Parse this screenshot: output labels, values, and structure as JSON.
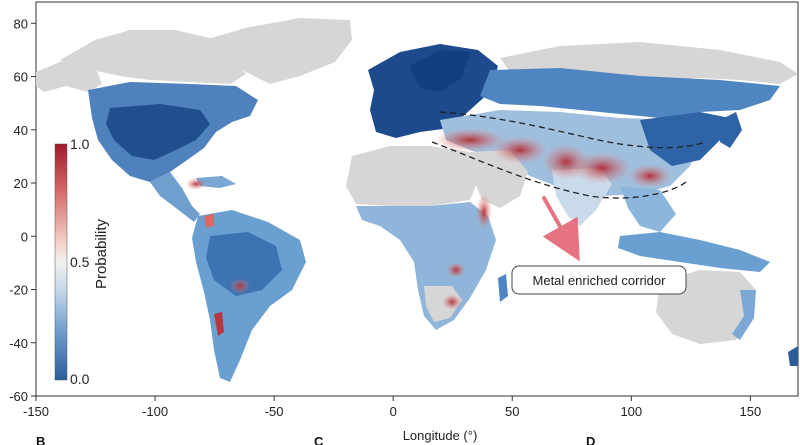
{
  "map": {
    "x_axis": {
      "label": "Longitude (°)",
      "range": [
        -150,
        170
      ],
      "ticks": [
        "-150",
        "-100",
        "-50",
        "0",
        "50",
        "100",
        "150"
      ]
    },
    "y_axis": {
      "range": [
        -60,
        88
      ],
      "ticks": [
        "80",
        "60",
        "40",
        "20",
        "0",
        "-20",
        "-40",
        "-60"
      ]
    },
    "colorbar": {
      "title": "Probability",
      "max_label": "1.0",
      "mid_label": "0.5",
      "min_label": "0.0",
      "colors": {
        "high": "#9e1a2b",
        "mid": "#f3f1ee",
        "low": "#2c5d97"
      }
    },
    "annotation": {
      "text": "Metal enriched corridor"
    },
    "panel_labels": [
      "B",
      "C",
      "D"
    ],
    "land_no_data_color": "#d6d6d6"
  }
}
